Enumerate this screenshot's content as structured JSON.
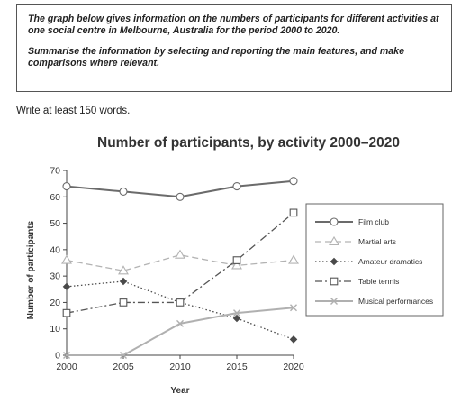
{
  "task": {
    "paragraph1": "The graph below gives information on the numbers of participants for different activities at one social centre in Melbourne, Australia for the period 2000 to 2020.",
    "paragraph2": "Summarise the information by selecting and reporting the main features, and make comparisons where relevant."
  },
  "instruction": "Write at least 150 words.",
  "chart_data": {
    "type": "line",
    "title": "Number of participants, by activity 2000–2020",
    "xlabel": "Year",
    "ylabel": "Number of participants",
    "x": [
      2000,
      2005,
      2010,
      2015,
      2020
    ],
    "ylim": [
      0,
      70
    ],
    "yticks": [
      0,
      10,
      20,
      30,
      40,
      50,
      60,
      70
    ],
    "grid": false,
    "legend_position": "right",
    "series": [
      {
        "name": "Film club",
        "values": [
          64,
          62,
          60,
          64,
          66
        ],
        "color": "#6b6b6b",
        "marker": "circle",
        "dash": "solid"
      },
      {
        "name": "Martial arts",
        "values": [
          36,
          32,
          38,
          34,
          36
        ],
        "color": "#b3b3b3",
        "marker": "triangle",
        "dash": "dashed"
      },
      {
        "name": "Amateur dramatics",
        "values": [
          26,
          28,
          20,
          14,
          6
        ],
        "color": "#4a4a4a",
        "marker": "diamond",
        "dash": "dotted"
      },
      {
        "name": "Table tennis",
        "values": [
          16,
          20,
          20,
          36,
          54
        ],
        "color": "#555555",
        "marker": "square",
        "dash": "dashdot"
      },
      {
        "name": "Musical performances",
        "values": [
          0,
          0,
          12,
          16,
          18
        ],
        "color": "#b0b0b0",
        "marker": "cross",
        "dash": "solid"
      }
    ]
  }
}
